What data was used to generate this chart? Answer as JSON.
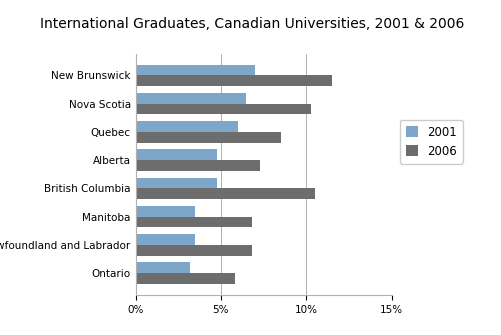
{
  "title": "International Graduates, Canadian Universities, 2001 & 2006",
  "categories": [
    "New Brunswick",
    "Nova Scotia",
    "Quebec",
    "Alberta",
    "British Columbia",
    "Manitoba",
    "Newfoundland and Labrador",
    "Ontario"
  ],
  "values_2001": [
    7.0,
    6.5,
    6.0,
    4.8,
    4.8,
    3.5,
    3.5,
    3.2
  ],
  "values_2006": [
    11.5,
    10.3,
    8.5,
    7.3,
    10.5,
    6.8,
    6.8,
    5.8
  ],
  "color_2001": "#7ea6c8",
  "color_2006": "#6d6d6d",
  "xlim": [
    0,
    15
  ],
  "xticks": [
    0,
    5,
    10,
    15
  ],
  "legend_labels": [
    "2001",
    "2006"
  ],
  "bar_height": 0.38,
  "background_color": "#ffffff",
  "title_fontsize": 10,
  "tick_fontsize": 7.5,
  "ytick_fontsize": 7.5
}
